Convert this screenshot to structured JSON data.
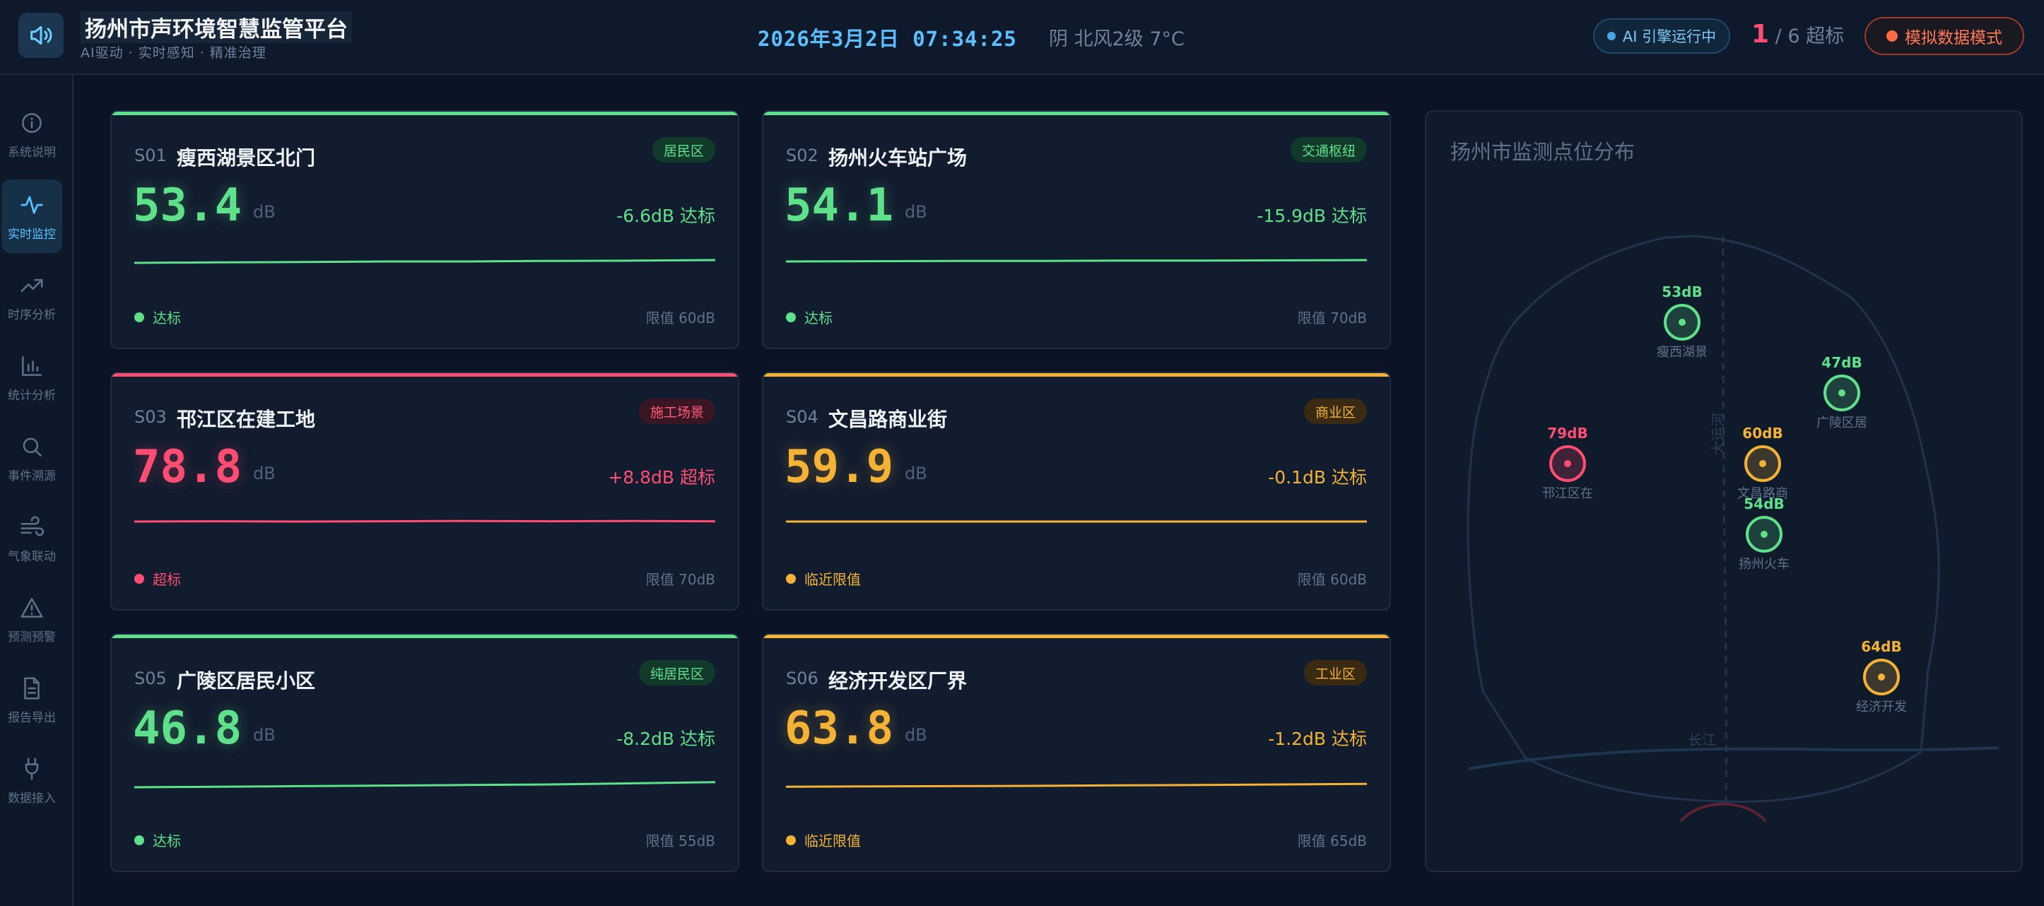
{
  "header": {
    "title": "扬州市声环境智慧监管平台",
    "subtitle": "AI驱动 · 实时感知 · 精准治理",
    "datetime": "2026年3月2日 07:34:25",
    "weather": "阴 北风2级 7°C",
    "ai_status": "AI 引擎运行中",
    "exceed_count": "1",
    "exceed_rest": "/ 6 超标",
    "mode_button": "模拟数据模式",
    "logo_icon": "speaker-icon"
  },
  "sidebar": {
    "items": [
      {
        "label": "系统说明",
        "icon": "info-icon",
        "active": false
      },
      {
        "label": "实时监控",
        "icon": "pulse-icon",
        "active": true
      },
      {
        "label": "时序分析",
        "icon": "trend-icon",
        "active": false
      },
      {
        "label": "统计分析",
        "icon": "bar-chart-icon",
        "active": false
      },
      {
        "label": "事件溯源",
        "icon": "search-icon",
        "active": false
      },
      {
        "label": "气象联动",
        "icon": "wind-icon",
        "active": false
      },
      {
        "label": "预测预警",
        "icon": "warning-icon",
        "active": false
      },
      {
        "label": "报告导出",
        "icon": "document-icon",
        "active": false
      },
      {
        "label": "数据接入",
        "icon": "plug-icon",
        "active": false
      }
    ]
  },
  "colors": {
    "ok": "#5fe08a",
    "alarm": "#ff4d73",
    "warn": "#f5b335",
    "accent": "#5cc0ff"
  },
  "stations": [
    {
      "code": "S01",
      "name": "瘦西湖景区北门",
      "tag": "居民区",
      "value": "53.4",
      "unit": "dB",
      "delta": "-6.6dB 达标",
      "status": "达标",
      "limit": "限值 60dB",
      "level": "ok",
      "trend": [
        0.45,
        0.47,
        0.48,
        0.5,
        0.5,
        0.52,
        0.53,
        0.55
      ]
    },
    {
      "code": "S02",
      "name": "扬州火车站广场",
      "tag": "交通枢纽",
      "value": "54.1",
      "unit": "dB",
      "delta": "-15.9dB 达标",
      "status": "达标",
      "limit": "限值 70dB",
      "level": "ok",
      "trend": [
        0.5,
        0.51,
        0.52,
        0.52,
        0.53,
        0.53,
        0.54,
        0.55
      ]
    },
    {
      "code": "S03",
      "name": "邗江区在建工地",
      "tag": "施工场景",
      "value": "78.8",
      "unit": "dB",
      "delta": "+8.8dB 超标",
      "status": "超标",
      "limit": "限值 70dB",
      "level": "alarm",
      "trend": [
        0.55,
        0.56,
        0.55,
        0.56,
        0.57,
        0.56,
        0.57,
        0.56
      ]
    },
    {
      "code": "S04",
      "name": "文昌路商业街",
      "tag": "商业区",
      "value": "59.9",
      "unit": "dB",
      "delta": "-0.1dB 达标",
      "status": "临近限值",
      "limit": "限值 60dB",
      "level": "warn",
      "trend": [
        0.55,
        0.55,
        0.55,
        0.55,
        0.55,
        0.55,
        0.55,
        0.55
      ]
    },
    {
      "code": "S05",
      "name": "广陵区居民小区",
      "tag": "纯居民区",
      "value": "46.8",
      "unit": "dB",
      "delta": "-8.2dB 达标",
      "status": "达标",
      "limit": "限值 55dB",
      "level": "ok",
      "trend": [
        0.4,
        0.42,
        0.44,
        0.46,
        0.48,
        0.5,
        0.54,
        0.58
      ]
    },
    {
      "code": "S06",
      "name": "经济开发区厂界",
      "tag": "工业区",
      "value": "63.8",
      "unit": "dB",
      "delta": "-1.2dB 达标",
      "status": "临近限值",
      "limit": "限值 65dB",
      "level": "warn",
      "trend": [
        0.42,
        0.43,
        0.44,
        0.45,
        0.47,
        0.48,
        0.5,
        0.52
      ]
    }
  ],
  "map": {
    "title": "扬州市监测点位分布",
    "road_label": "大运河",
    "river_label": "长江",
    "points": [
      {
        "value": "53dB",
        "label": "瘦西湖景",
        "level": "ok"
      },
      {
        "value": "47dB",
        "label": "广陵区居",
        "level": "ok"
      },
      {
        "value": "79dB",
        "label": "邗江区在",
        "level": "alarm"
      },
      {
        "value": "60dB",
        "label": "文昌路商",
        "level": "warn"
      },
      {
        "value": "54dB",
        "label": "扬州火车",
        "level": "ok"
      },
      {
        "value": "64dB",
        "label": "经济开发",
        "level": "warn"
      }
    ]
  }
}
